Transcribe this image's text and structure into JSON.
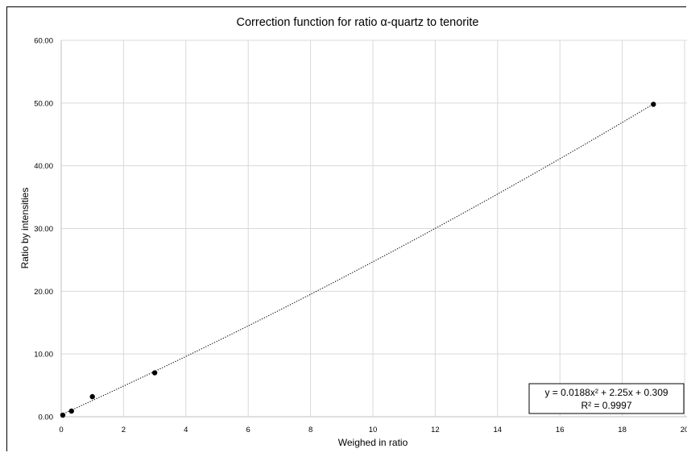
{
  "chart_data": {
    "type": "scatter",
    "title": "Correction function for ratio α-quartz to tenorite",
    "xlabel": "Weighed in ratio",
    "ylabel": "Ratio by intensities",
    "xlim": [
      0,
      20
    ],
    "ylim": [
      0,
      60
    ],
    "x_ticks": [
      0,
      2,
      4,
      6,
      8,
      10,
      12,
      14,
      16,
      18,
      20
    ],
    "x_tick_labels": [
      "0",
      "2",
      "4",
      "6",
      "8",
      "10",
      "12",
      "14",
      "16",
      "18",
      "20"
    ],
    "y_ticks": [
      0,
      10,
      20,
      30,
      40,
      50,
      60
    ],
    "y_tick_labels": [
      "0.00",
      "10.00",
      "20.00",
      "30.00",
      "40.00",
      "50.00",
      "60.00"
    ],
    "grid": true,
    "points": [
      {
        "x": 0.05,
        "y": 0.25
      },
      {
        "x": 0.33,
        "y": 0.9
      },
      {
        "x": 1.0,
        "y": 3.2
      },
      {
        "x": 3.0,
        "y": 7.0
      },
      {
        "x": 19.0,
        "y": 49.8
      }
    ],
    "trendline": {
      "type": "polynomial",
      "order": 2,
      "coefficients": [
        0.0188,
        2.25,
        0.309
      ],
      "x_range": [
        0,
        19
      ],
      "style": "dotted",
      "color": "#000000",
      "equation_label": "y = 0.0188x² + 2.25x + 0.309",
      "r2_label": "R² = 0.9997",
      "label_position": "bottom-right"
    }
  }
}
